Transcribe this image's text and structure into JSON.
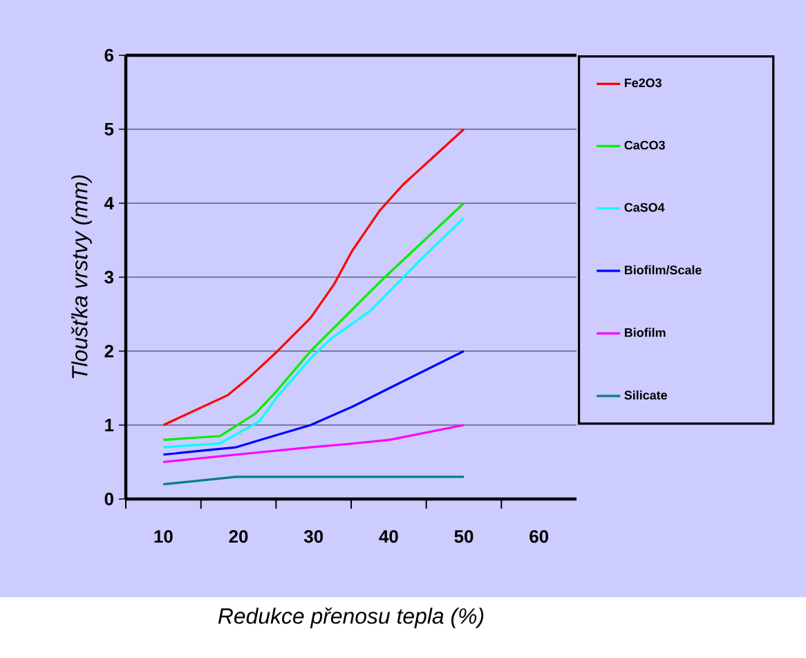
{
  "chart_data": {
    "type": "line",
    "xlabel": "Redukce přenosu tepla (%)",
    "ylabel": "Tloušťka vrstvy (mm)",
    "xlim": [
      5,
      65
    ],
    "xticks": [
      10,
      20,
      30,
      40,
      50,
      60,
      {
        "value": 5,
        "label": null
      },
      {
        "value": 15,
        "label": null
      },
      {
        "value": 25,
        "label": null
      },
      {
        "value": 35,
        "label": null
      },
      {
        "value": 45,
        "label": null
      },
      {
        "value": 55,
        "label": null
      }
    ],
    "ylim": [
      0,
      6
    ],
    "yticks": [
      0,
      1,
      2,
      3,
      4,
      5,
      6
    ],
    "grid": "y",
    "legend": "right",
    "marker": "none",
    "line_style": "solid",
    "series": [
      {
        "name": "Fe2O3",
        "color": "#ff0000",
        "x": [
          10,
          18.5,
          21.5,
          25.2,
          29.6,
          32.7,
          35.1,
          38.8,
          41.9,
          50
        ],
        "values": [
          1.0,
          1.4,
          1.65,
          2.0,
          2.45,
          2.9,
          3.35,
          3.9,
          4.25,
          5.0
        ]
      },
      {
        "name": "CaCO3",
        "color": "#00ee00",
        "x": [
          10,
          17.5,
          22.2,
          25,
          29.6,
          39.5,
          50
        ],
        "values": [
          0.8,
          0.85,
          1.15,
          1.45,
          2.0,
          3.0,
          4.0
        ]
      },
      {
        "name": "CaSO4",
        "color": "#00ffff",
        "x": [
          10,
          17.5,
          22.8,
          25.3,
          29.6,
          32.1,
          37.6,
          44.4,
          50
        ],
        "values": [
          0.7,
          0.75,
          1.05,
          1.4,
          1.9,
          2.15,
          2.55,
          3.25,
          3.8
        ]
      },
      {
        "name": "Biofilm/Scale",
        "color": "#0000ff",
        "x": [
          10,
          14.8,
          19.7,
          24.6,
          29.6,
          35.2,
          40.1,
          50
        ],
        "values": [
          0.6,
          0.65,
          0.7,
          0.85,
          1.0,
          1.25,
          1.5,
          2.0
        ]
      },
      {
        "name": "Biofilm",
        "color": "#ff00ff",
        "x": [
          10,
          19.7,
          29.6,
          35.2,
          40.1,
          50
        ],
        "values": [
          0.5,
          0.6,
          0.7,
          0.75,
          0.8,
          1.0
        ]
      },
      {
        "name": "Silicate",
        "color": "#008080",
        "x": [
          10,
          19.7,
          50
        ],
        "values": [
          0.2,
          0.3,
          0.3
        ]
      }
    ]
  }
}
